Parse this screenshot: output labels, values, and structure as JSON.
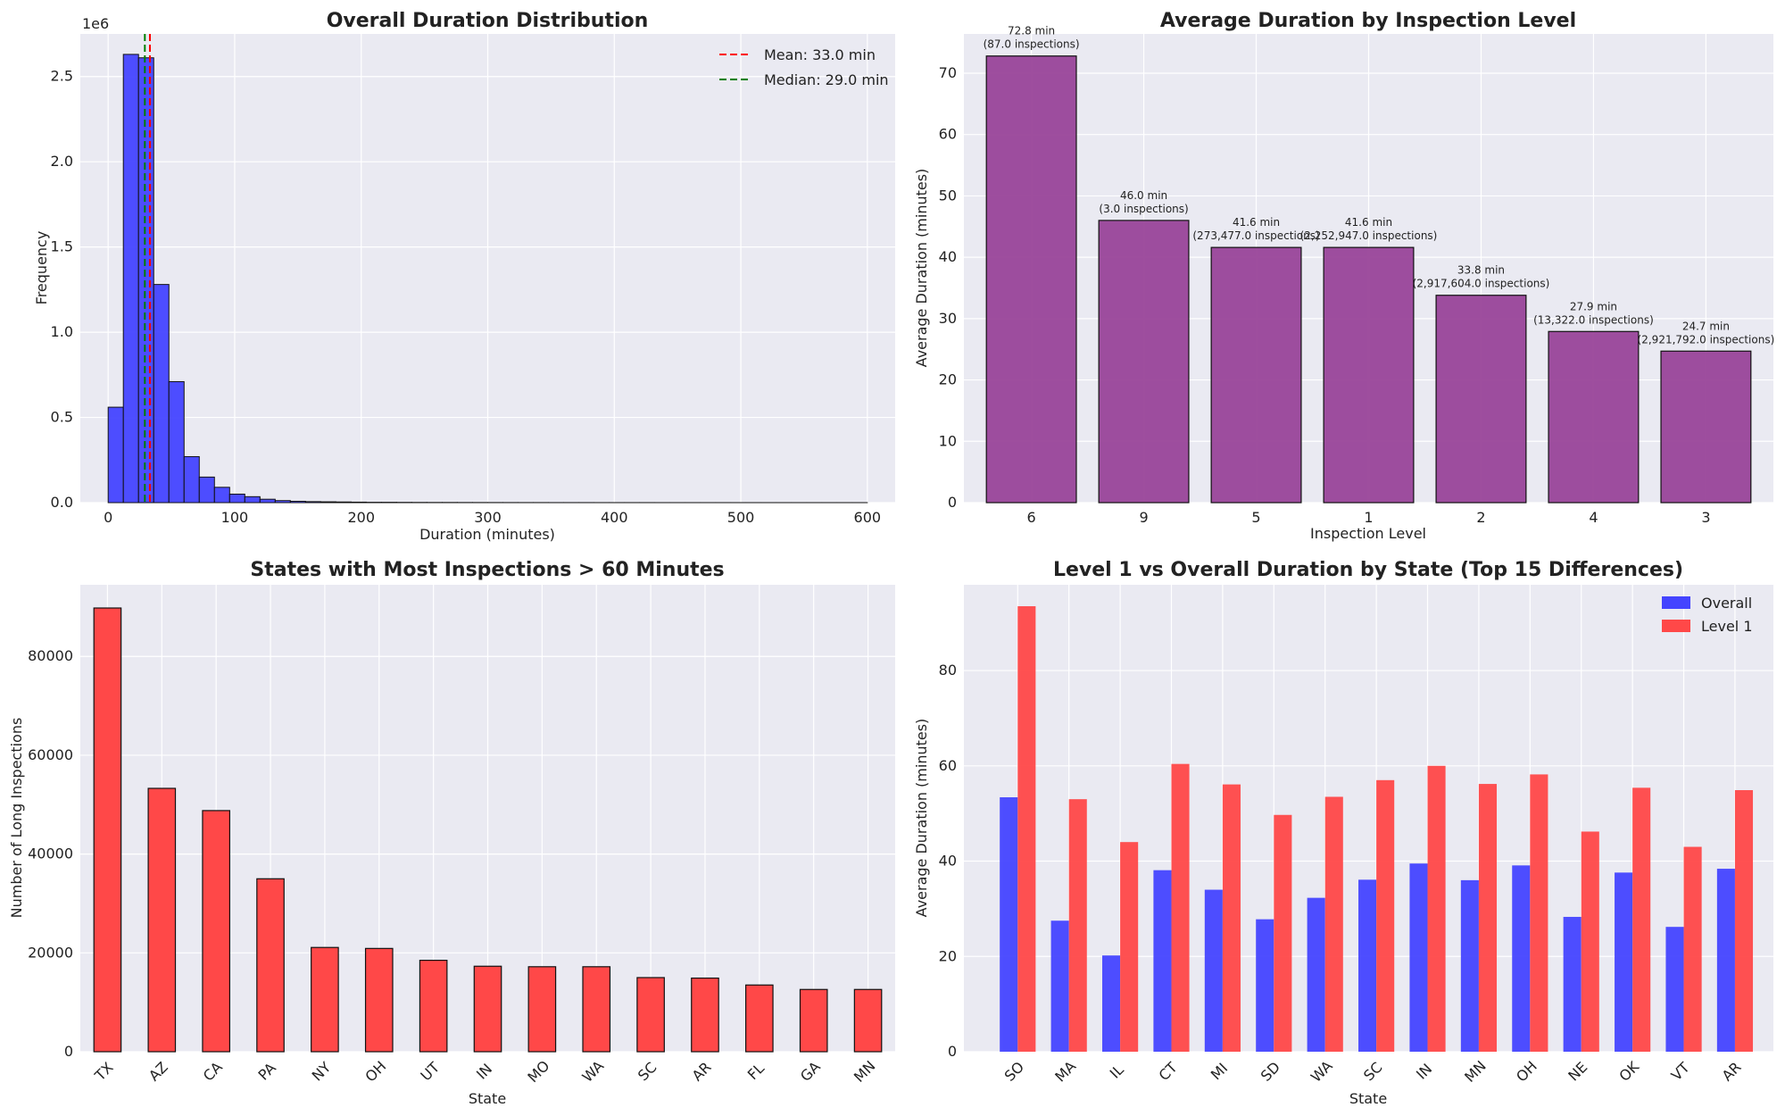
{
  "colors": {
    "plot_bg": "#eaeaf2",
    "grid": "#ffffff",
    "blue": "#4444ff",
    "red": "#ff4848",
    "purple": "#994499",
    "mean_line": "#ff0000",
    "median_line": "#008000",
    "edge": "#111111"
  },
  "chart_data": [
    {
      "type": "bar",
      "subtype": "histogram",
      "title": "Overall Duration Distribution",
      "xlabel": "Duration (minutes)",
      "ylabel": "Frequency",
      "yoffset_label": "1e6",
      "xlim": [
        -22,
        622
      ],
      "ylim": [
        0,
        2.75
      ],
      "xticks": [
        0,
        100,
        200,
        300,
        400,
        500,
        600
      ],
      "yticks": [
        0.0,
        0.5,
        1.0,
        1.5,
        2.0,
        2.5
      ],
      "bin_width": 12,
      "bin_start": 0,
      "values": [
        0.56,
        2.63,
        2.61,
        1.28,
        0.71,
        0.27,
        0.15,
        0.09,
        0.05,
        0.035,
        0.02,
        0.012,
        0.008,
        0.006,
        0.005,
        0.004,
        0.003,
        0.002,
        0.002,
        0.0015,
        0.0012,
        0.001,
        0.001,
        0.0008,
        0.0007,
        0.0006,
        0.0005,
        0.0004,
        0.0004,
        0.0003,
        0.0003,
        0.0003,
        0.0002,
        0.0002,
        0.0002,
        0.0002,
        0.0001,
        0.0001,
        0.0001,
        0.0001,
        0.0001,
        0.0001,
        0.0001,
        0.0001,
        0.0001,
        0.0001,
        0.0001,
        0.0001,
        0.0001,
        0.0001
      ],
      "vlines": [
        {
          "x": 33.0,
          "label": "Mean: 33.0 min",
          "color": "#ff0000"
        },
        {
          "x": 29.0,
          "label": "Median: 29.0 min",
          "color": "#008000"
        }
      ],
      "legend": "top-right",
      "grid": true
    },
    {
      "type": "bar",
      "title": "Average Duration by Inspection Level",
      "xlabel": "Inspection Level",
      "ylabel": "Average Duration (minutes)",
      "ylim": [
        0,
        76.4
      ],
      "yticks": [
        0,
        10,
        20,
        30,
        40,
        50,
        60,
        70
      ],
      "categories": [
        "6",
        "9",
        "5",
        "1",
        "2",
        "4",
        "3"
      ],
      "values": [
        72.8,
        46.0,
        41.6,
        41.6,
        33.8,
        27.9,
        24.7
      ],
      "bar_labels": [
        [
          "72.8 min",
          "(87.0 inspections)"
        ],
        [
          "46.0 min",
          "(3.0 inspections)"
        ],
        [
          "41.6 min",
          "(273,477.0 inspections)"
        ],
        [
          "41.6 min",
          "(2,252,947.0 inspections)"
        ],
        [
          "33.8 min",
          "(2,917,604.0 inspections)"
        ],
        [
          "27.9 min",
          "(13,322.0 inspections)"
        ],
        [
          "24.7 min",
          "(2,921,792.0 inspections)"
        ]
      ],
      "grid": true
    },
    {
      "type": "bar",
      "title": "States with Most Inspections > 60 Minutes",
      "xlabel": "State",
      "ylabel": "Number of Long Inspections",
      "ylim": [
        0,
        94500
      ],
      "yticks": [
        0,
        20000,
        40000,
        60000,
        80000
      ],
      "categories": [
        "TX",
        "AZ",
        "CA",
        "PA",
        "NY",
        "OH",
        "UT",
        "IN",
        "MO",
        "WA",
        "SC",
        "AR",
        "FL",
        "GA",
        "MN"
      ],
      "values": [
        89800,
        53300,
        48800,
        35000,
        21100,
        20900,
        18500,
        17300,
        17200,
        17200,
        15000,
        14900,
        13500,
        12600,
        12600
      ],
      "grid": true
    },
    {
      "type": "bar",
      "subtype": "grouped",
      "title": "Level 1 vs Overall Duration by State (Top 15 Differences)",
      "xlabel": "State",
      "ylabel": "Average Duration (minutes)",
      "ylim": [
        0,
        98
      ],
      "yticks": [
        0,
        20,
        40,
        60,
        80
      ],
      "categories": [
        "SO",
        "MA",
        "IL",
        "CT",
        "MI",
        "SD",
        "WA",
        "SC",
        "IN",
        "MN",
        "OH",
        "NE",
        "OK",
        "VT",
        "AR"
      ],
      "series": [
        {
          "name": "Overall",
          "color": "#4444ff",
          "values": [
            53.4,
            27.5,
            20.2,
            38.1,
            34.0,
            27.8,
            32.3,
            36.1,
            39.5,
            36.0,
            39.1,
            28.3,
            37.6,
            26.2,
            38.4
          ]
        },
        {
          "name": "Level 1",
          "color": "#ff4848",
          "values": [
            93.5,
            53.0,
            44.0,
            60.4,
            56.1,
            49.7,
            53.5,
            57.0,
            60.0,
            56.2,
            58.2,
            46.2,
            55.4,
            43.0,
            54.9
          ]
        }
      ],
      "legend": "top-right",
      "grid": true
    }
  ]
}
